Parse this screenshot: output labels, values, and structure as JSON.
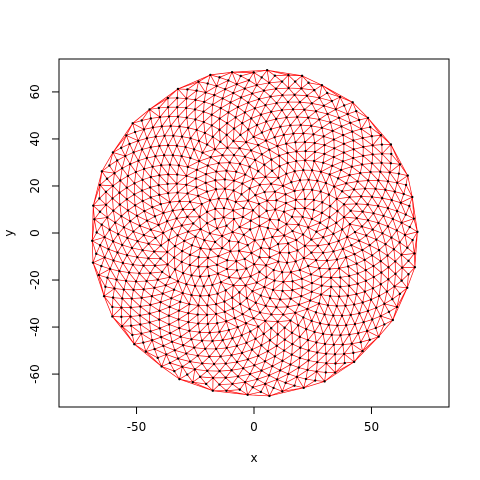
{
  "chart_data": {
    "type": "scatter",
    "title": "",
    "xlabel": "x",
    "ylabel": "y",
    "xlim": [
      -83,
      83
    ],
    "ylim": [
      -74,
      74
    ],
    "x_ticks": [
      -50,
      0,
      50
    ],
    "y_ticks": [
      -60,
      -40,
      -20,
      0,
      20,
      40,
      60
    ],
    "x_tick_labels": [
      "-50",
      "0",
      "50"
    ],
    "y_tick_labels": [
      "-60",
      "-40",
      "-20",
      "0",
      "20",
      "40",
      "60"
    ],
    "grid": false,
    "legend": "none",
    "point_pattern": {
      "kind": "fermat-spiral",
      "count": 1000,
      "golden_angle_deg": 137.508,
      "max_radius": 70
    },
    "colors": {
      "points": "#000000",
      "triangulation_edges": "#ff0000",
      "frame": "#000000"
    }
  }
}
